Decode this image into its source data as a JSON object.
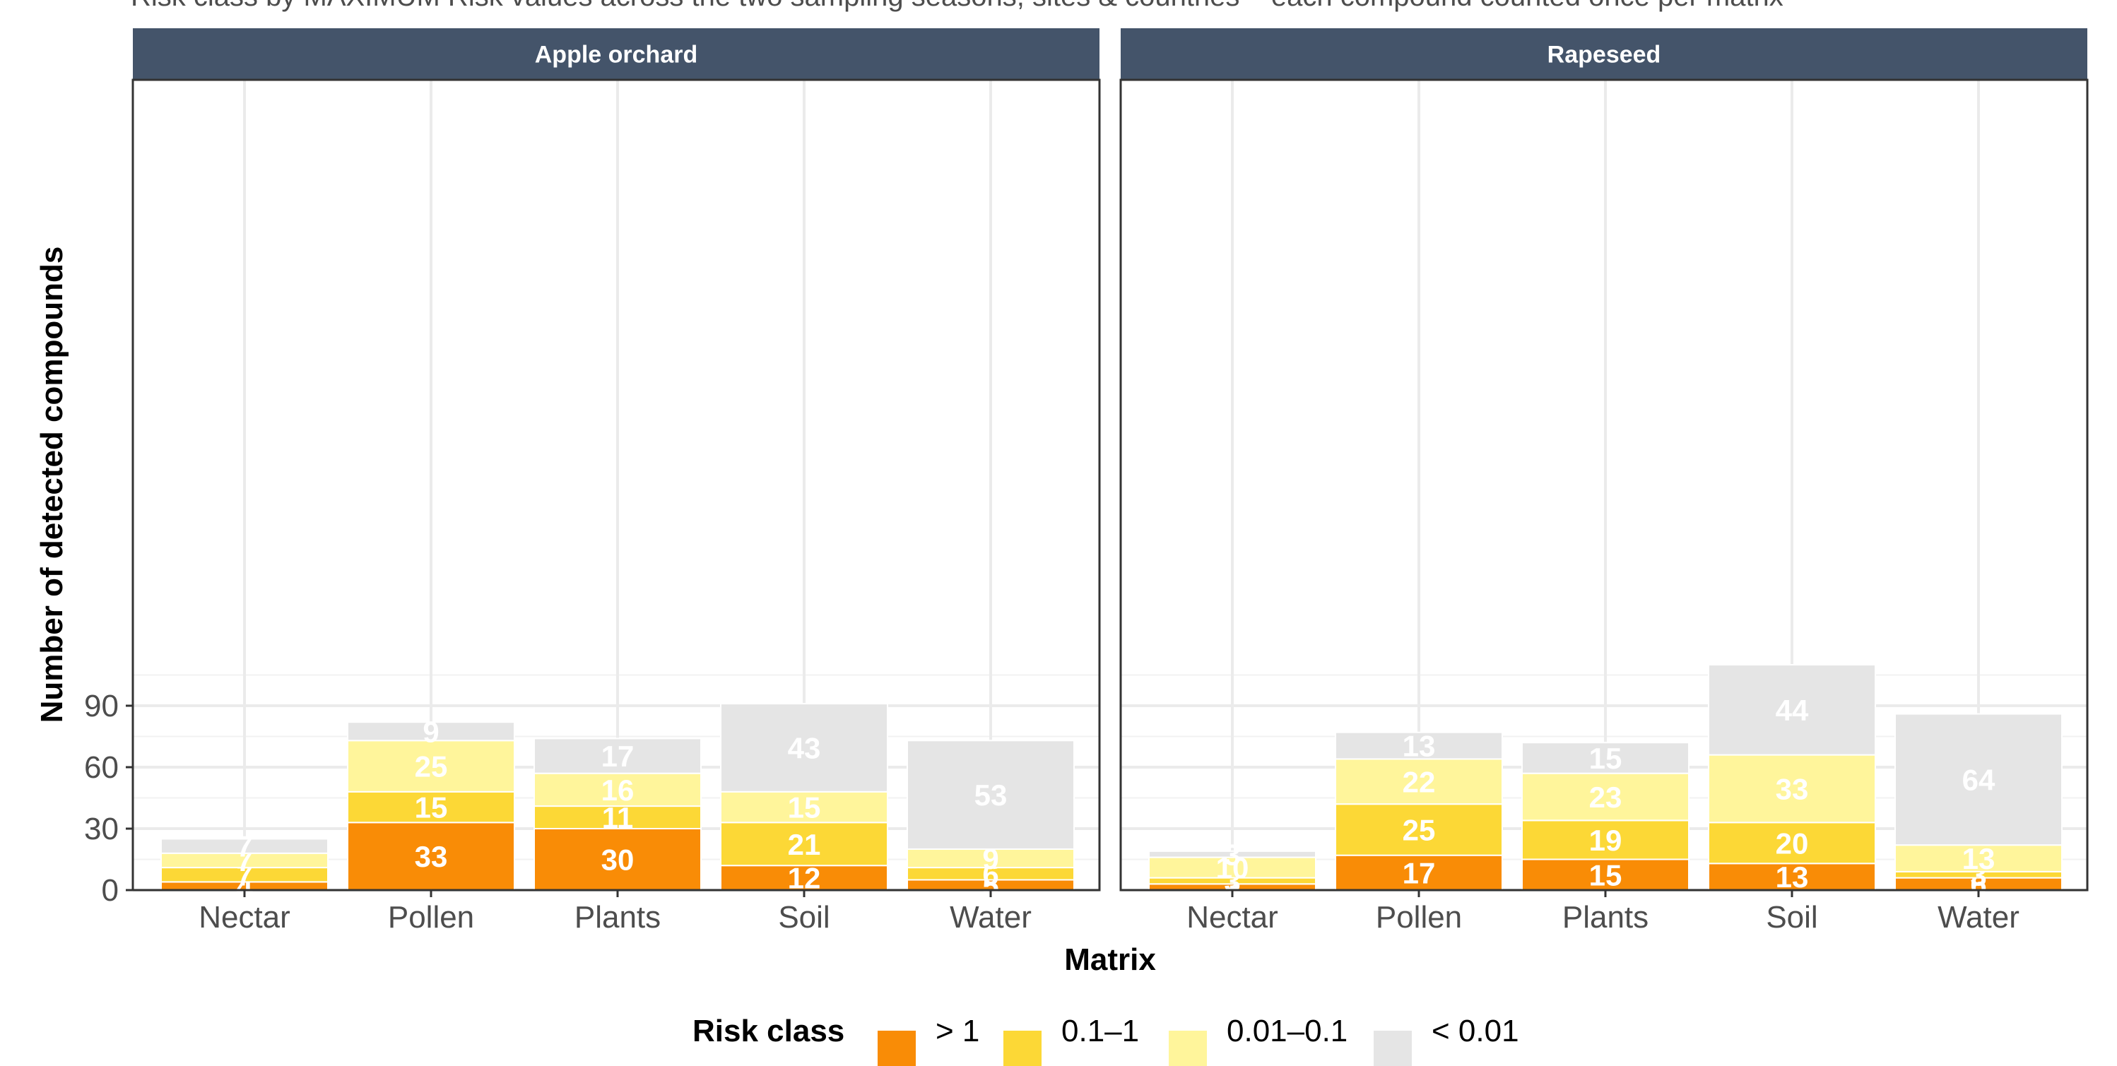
{
  "subtitle": "Risk class by MAXIMUM Risk values across the two sampling seasons, sites & countries – each compound counted once per matrix",
  "chart_data": {
    "type": "bar",
    "stacked": true,
    "facets": [
      {
        "title": "Apple orchard",
        "categories": [
          "Nectar",
          "Pollen",
          "Plants",
          "Soil",
          "Water"
        ],
        "series": [
          {
            "name": "> 1",
            "values": [
              4,
              33,
              30,
              12,
              5
            ]
          },
          {
            "name": "0.1–1",
            "values": [
              7,
              15,
              11,
              21,
              6
            ]
          },
          {
            "name": "0.01–0.1",
            "values": [
              7,
              25,
              16,
              15,
              9
            ]
          },
          {
            "name": "< 0.01",
            "values": [
              7,
              9,
              17,
              43,
              53
            ]
          }
        ]
      },
      {
        "title": "Rapeseed",
        "categories": [
          "Nectar",
          "Pollen",
          "Plants",
          "Soil",
          "Water"
        ],
        "series": [
          {
            "name": "> 1",
            "values": [
              3,
              17,
              15,
              13,
              6
            ]
          },
          {
            "name": "0.1–1",
            "values": [
              3,
              25,
              19,
              20,
              3
            ]
          },
          {
            "name": "0.01–0.1",
            "values": [
              10,
              22,
              23,
              33,
              13
            ]
          },
          {
            "name": "< 0.01",
            "values": [
              3,
              13,
              15,
              44,
              64
            ]
          }
        ]
      }
    ],
    "xlabel": "Matrix",
    "ylabel": "Number of detected compounds",
    "yticks": [
      0,
      30,
      60,
      90
    ],
    "ylim": [
      0,
      120
    ],
    "grid": true,
    "legend": {
      "title": "Risk class",
      "position": "bottom"
    },
    "colors": {
      "> 1": "#f98c06",
      "0.1–1": "#fcd836",
      "0.01–0.1": "#fff59b",
      "< 0.01": "#e5e5e5"
    },
    "strip_color": "#44546a"
  }
}
